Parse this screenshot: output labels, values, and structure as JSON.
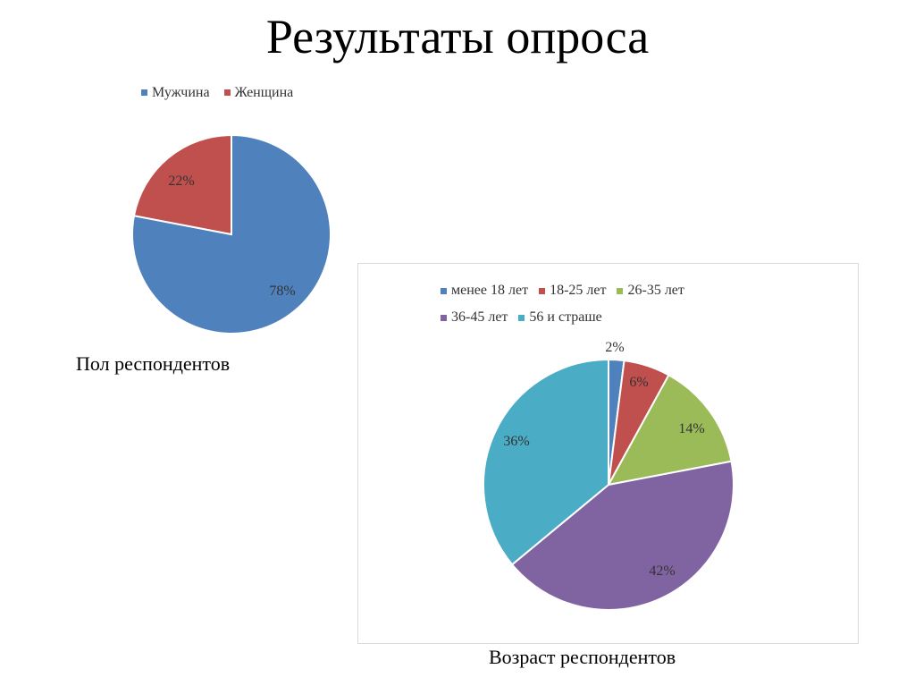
{
  "slide": {
    "title": "Результаты опроса"
  },
  "chart_data": [
    {
      "type": "pie",
      "title": "",
      "caption": "Пол респондентов",
      "categories": [
        "Мужчина",
        "Женщина"
      ],
      "values": [
        78,
        22
      ],
      "labels": [
        "78%",
        "22%"
      ],
      "colors": [
        "#4f81bd",
        "#c0504d"
      ],
      "legend_position": "top"
    },
    {
      "type": "pie",
      "title": "",
      "caption": "Возраст респондентов",
      "categories": [
        "менее 18 лет",
        "18-25 лет",
        "26-35 лет",
        "36-45 лет",
        "56 и страше"
      ],
      "values": [
        2,
        6,
        14,
        42,
        36
      ],
      "labels": [
        "2%",
        "6%",
        "14%",
        "42%",
        "36%"
      ],
      "colors": [
        "#4f81bd",
        "#c0504d",
        "#9bbb59",
        "#8064a2",
        "#4bacc6"
      ],
      "legend_position": "top"
    }
  ]
}
